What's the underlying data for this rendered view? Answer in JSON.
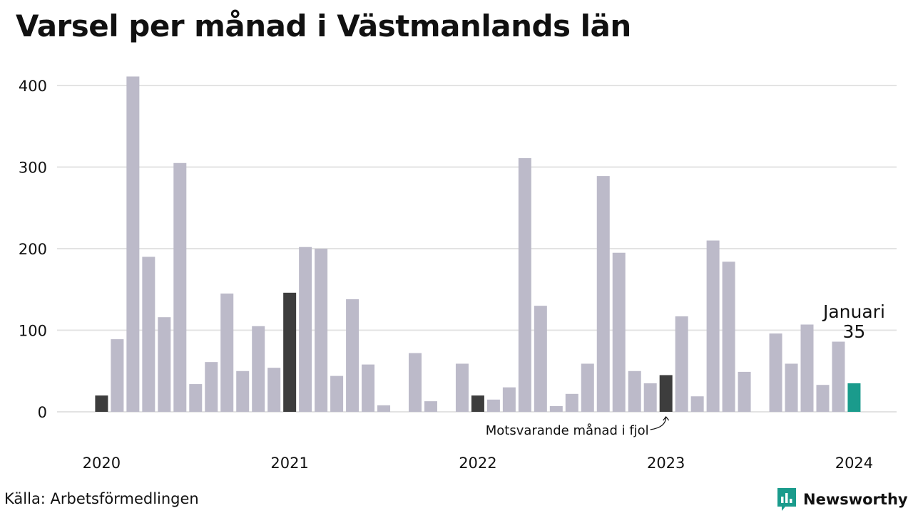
{
  "title": "Varsel per månad i Västmanlands län",
  "source": "Källa: Arbetsförmedlingen",
  "brand": {
    "name": "Newsworthy",
    "color": "#1a9b8c"
  },
  "colors": {
    "bar": "#bcbac9",
    "highlight": "#3d3d3d",
    "current": "#1a9b8c",
    "grid": "#e3e3e3"
  },
  "chart_data": {
    "type": "bar",
    "title": "Varsel per månad i Västmanlands län",
    "xlabel": "",
    "ylabel": "",
    "ylim": [
      0,
      450
    ],
    "yticks": [
      0,
      100,
      200,
      300,
      400
    ],
    "year_labels": [
      "2020",
      "2021",
      "2022",
      "2023",
      "2024"
    ],
    "grid": true,
    "categories": [
      "2020-01",
      "2020-02",
      "2020-03",
      "2020-04",
      "2020-05",
      "2020-06",
      "2020-07",
      "2020-08",
      "2020-09",
      "2020-10",
      "2020-11",
      "2020-12",
      "2021-01",
      "2021-02",
      "2021-03",
      "2021-04",
      "2021-05",
      "2021-06",
      "2021-07",
      "2021-08",
      "2021-09",
      "2021-10",
      "2021-11",
      "2021-12",
      "2022-01",
      "2022-02",
      "2022-03",
      "2022-04",
      "2022-05",
      "2022-06",
      "2022-07",
      "2022-08",
      "2022-09",
      "2022-10",
      "2022-11",
      "2022-12",
      "2023-01",
      "2023-02",
      "2023-03",
      "2023-04",
      "2023-05",
      "2023-06",
      "2023-07",
      "2023-08",
      "2023-09",
      "2023-10",
      "2023-11",
      "2023-12",
      "2024-01"
    ],
    "values": [
      20,
      89,
      411,
      190,
      116,
      305,
      34,
      61,
      145,
      50,
      105,
      54,
      146,
      202,
      200,
      44,
      138,
      58,
      8,
      0,
      72,
      13,
      0,
      59,
      20,
      15,
      30,
      311,
      130,
      7,
      22,
      59,
      289,
      195,
      50,
      35,
      45,
      117,
      19,
      210,
      184,
      49,
      0,
      96,
      59,
      107,
      33,
      86,
      35
    ],
    "highlighted": [
      "2020-01",
      "2021-01",
      "2022-01",
      "2023-01"
    ],
    "current": "2024-01",
    "annotations": {
      "current_month": "Januari",
      "current_value": "35",
      "previous_year": "Motsvarande månad i fjol"
    }
  }
}
